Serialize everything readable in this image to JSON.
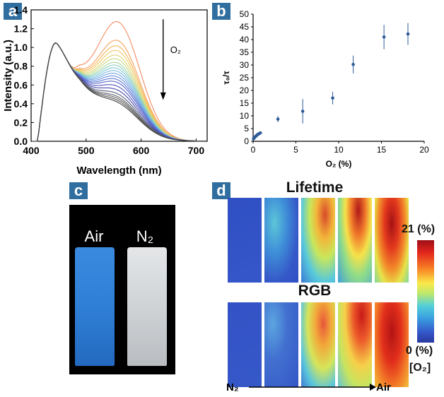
{
  "panels": {
    "a": "a",
    "b": "b",
    "c": "c",
    "d": "d"
  },
  "chart_data": [
    {
      "panel": "a",
      "type": "line",
      "xlabel": "Wavelength (nm)",
      "ylabel": "Intensity (a.u.)",
      "xlim": [
        400,
        720
      ],
      "ylim": [
        0,
        1.4
      ],
      "xticks": [
        "400",
        "500",
        "600",
        "700"
      ],
      "yticks": [
        "0.0",
        "0.2",
        "0.4",
        "0.6",
        "0.8",
        "1.0",
        "1.2",
        "1.4"
      ],
      "annotation": "O₂",
      "peak2_x": 560,
      "peak2_heights": [
        1.13,
        0.93,
        0.87,
        0.82,
        0.77,
        0.73,
        0.69,
        0.66,
        0.63,
        0.6,
        0.57,
        0.54,
        0.51,
        0.48,
        0.44,
        0.4,
        0.36,
        0.33,
        0.31,
        0.29,
        0.27
      ],
      "series_colors": [
        "#f28a62",
        "#f6a05a",
        "#f3b454",
        "#efc860",
        "#dcd46e",
        "#c2d884",
        "#a8d6a2",
        "#8fd0c0",
        "#7ec6d6",
        "#78b6e0",
        "#70a4e2",
        "#6890dc",
        "#5f7ad4",
        "#5664c8",
        "#4f52bc",
        "#4a48ac",
        "#515a7a",
        "#5a5f6a",
        "#626262",
        "#555555",
        "#444444"
      ]
    },
    {
      "panel": "b",
      "type": "scatter",
      "xlabel": "O₂ (%)",
      "ylabel": "τ₀/τ",
      "xlim": [
        0,
        20
      ],
      "ylim": [
        0,
        50
      ],
      "xticks": [
        "0",
        "5",
        "10",
        "15",
        "20"
      ],
      "yticks": [
        "0",
        "5",
        "10",
        "15",
        "20",
        "25",
        "30",
        "35",
        "40",
        "45",
        "50"
      ],
      "points": [
        {
          "x": 0.05,
          "y": 1.0,
          "err": 0.3
        },
        {
          "x": 0.15,
          "y": 1.4,
          "err": 0.3
        },
        {
          "x": 0.25,
          "y": 1.8,
          "err": 0.3
        },
        {
          "x": 0.35,
          "y": 2.1,
          "err": 0.3
        },
        {
          "x": 0.45,
          "y": 2.4,
          "err": 0.3
        },
        {
          "x": 0.55,
          "y": 2.7,
          "err": 0.3
        },
        {
          "x": 0.7,
          "y": 3.0,
          "err": 0.3
        },
        {
          "x": 0.85,
          "y": 3.3,
          "err": 0.3
        },
        {
          "x": 2.9,
          "y": 8.7,
          "err": 1.2
        },
        {
          "x": 5.8,
          "y": 11.8,
          "err": 4.8
        },
        {
          "x": 9.3,
          "y": 17.0,
          "err": 2.5
        },
        {
          "x": 11.7,
          "y": 30.2,
          "err": 3.5
        },
        {
          "x": 15.3,
          "y": 41.0,
          "err": 4.8
        },
        {
          "x": 18.1,
          "y": 42.2,
          "err": 4.3
        }
      ],
      "marker_color": "#2f5b9a"
    }
  ],
  "panel_c": {
    "vials": [
      {
        "label": "Air",
        "color": "#2f7fd6"
      },
      {
        "label": "N₂",
        "color": "#cfd3d6"
      }
    ]
  },
  "panel_d": {
    "title_top": "Lifetime",
    "title_bottom": "RGB",
    "colorbar_max": "21 (%)",
    "colorbar_min": "0 (%)",
    "colorbar_unit": "[O₂]",
    "axis_start": "N₂",
    "axis_end": "Air"
  }
}
